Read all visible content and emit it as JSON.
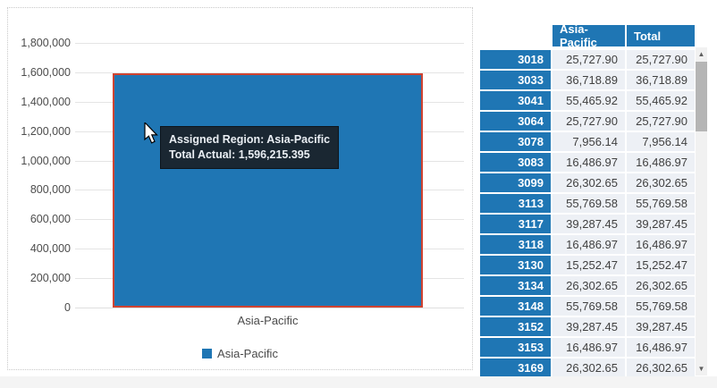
{
  "chart": {
    "x_axis_label": "Asia-Pacific",
    "legend": {
      "label": "Asia-Pacific",
      "swatch_color": "#1f76b4"
    },
    "tooltip": {
      "line1": "Assigned Region: Asia-Pacific",
      "line2": "Total Actual: 1,596,215.395"
    },
    "colors": {
      "bar_fill": "#1f76b4",
      "bar_selected_border": "#cf4331",
      "gridline": "#e4e4e4",
      "tooltip_bg": "#1a2732"
    }
  },
  "chart_data": {
    "type": "bar",
    "categories": [
      "Asia-Pacific"
    ],
    "series": [
      {
        "name": "Asia-Pacific",
        "values": [
          1596215.395
        ]
      }
    ],
    "title": "",
    "xlabel": "",
    "ylabel": "",
    "ylim": [
      0,
      1800000
    ],
    "ytick_step": 200000,
    "ytick_labels": [
      "0",
      "200,000",
      "400,000",
      "600,000",
      "800,000",
      "1,000,000",
      "1,200,000",
      "1,400,000",
      "1,600,000",
      "1,800,000"
    ],
    "grid": true,
    "legend_position": "bottom",
    "selected_bar": "Asia-Pacific",
    "tooltip_text": [
      "Assigned Region: Asia-Pacific",
      "Total Actual: 1,596,215.395"
    ]
  },
  "table": {
    "columns": [
      "Asia-Pacific",
      "Total"
    ],
    "rows": [
      [
        "3018",
        "25,727.90",
        "25,727.90"
      ],
      [
        "3033",
        "36,718.89",
        "36,718.89"
      ],
      [
        "3041",
        "55,465.92",
        "55,465.92"
      ],
      [
        "3064",
        "25,727.90",
        "25,727.90"
      ],
      [
        "3078",
        "7,956.14",
        "7,956.14"
      ],
      [
        "3083",
        "16,486.97",
        "16,486.97"
      ],
      [
        "3099",
        "26,302.65",
        "26,302.65"
      ],
      [
        "3113",
        "55,769.58",
        "55,769.58"
      ],
      [
        "3117",
        "39,287.45",
        "39,287.45"
      ],
      [
        "3118",
        "16,486.97",
        "16,486.97"
      ],
      [
        "3130",
        "15,252.47",
        "15,252.47"
      ],
      [
        "3134",
        "26,302.65",
        "26,302.65"
      ],
      [
        "3148",
        "55,769.58",
        "55,769.58"
      ],
      [
        "3152",
        "39,287.45",
        "39,287.45"
      ],
      [
        "3153",
        "16,486.97",
        "16,486.97"
      ],
      [
        "3169",
        "26,302.65",
        "26,302.65"
      ]
    ],
    "header_bg": "#1f76b4",
    "cell_bg": "#edf0f5"
  },
  "scrollbar": {
    "up_glyph": "▲",
    "down_glyph": "▼"
  }
}
